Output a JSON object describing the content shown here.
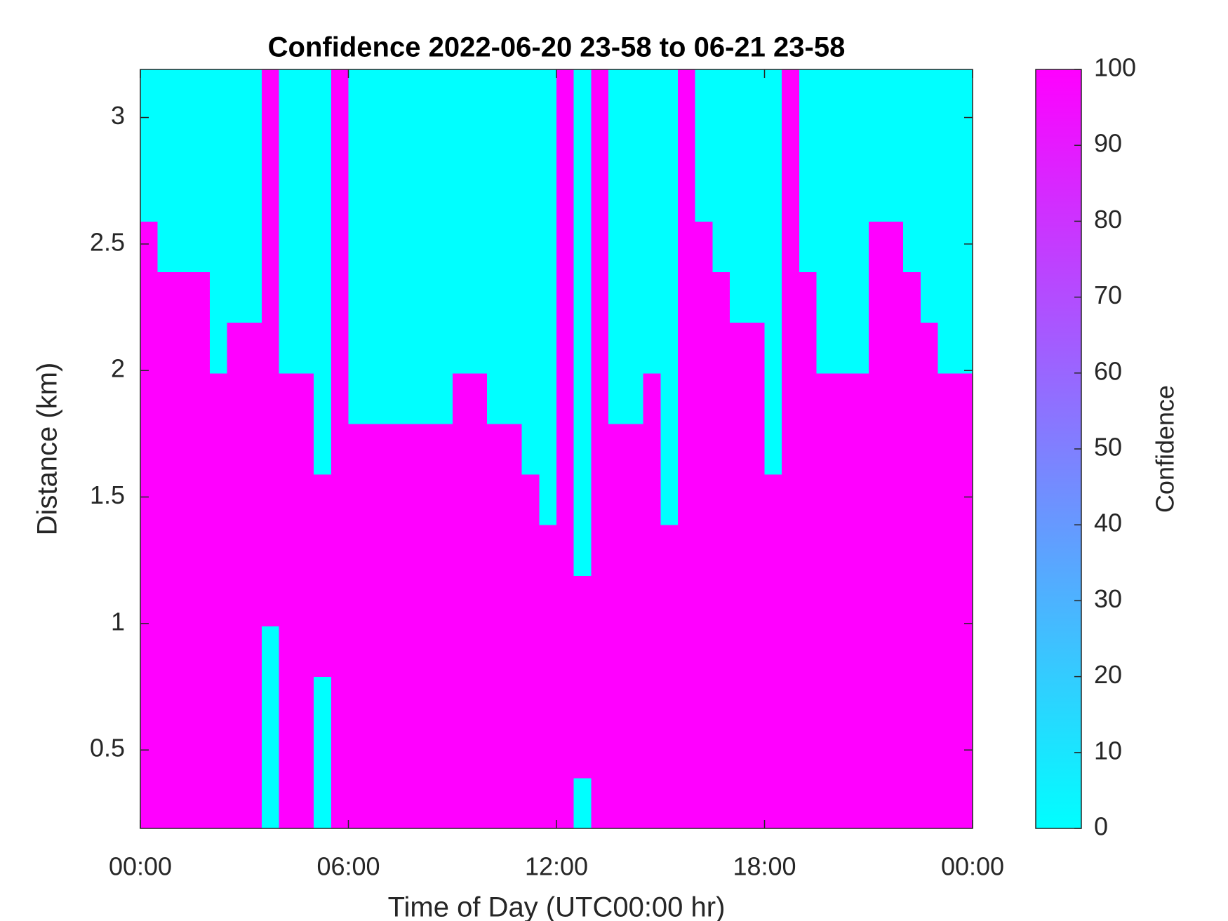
{
  "chart_data": {
    "type": "heatmap",
    "title": "Confidence 2022-06-20 23-58 to 06-21 23-58",
    "xlabel": "Time of Day (UTC00:00 hr)",
    "ylabel": "Distance (km)",
    "colorbar_label": "Confidence",
    "colormap": [
      "#00ffff",
      "#ff00ff"
    ],
    "clim": [
      0,
      100
    ],
    "cticks": [
      0,
      10,
      20,
      30,
      40,
      50,
      60,
      70,
      80,
      90,
      100
    ],
    "xlim": [
      0,
      24
    ],
    "xticks": [
      {
        "value": 0,
        "label": "00:00"
      },
      {
        "value": 6,
        "label": "06:00"
      },
      {
        "value": 12,
        "label": "12:00"
      },
      {
        "value": 18,
        "label": "18:00"
      },
      {
        "value": 24,
        "label": "00:00"
      }
    ],
    "ylim": [
      0.19,
      3.19
    ],
    "yticks": [
      0.5,
      1,
      1.5,
      2,
      2.5,
      3
    ],
    "xbins": [
      0,
      0.5,
      1,
      1.5,
      2,
      2.5,
      3,
      3.5,
      4,
      4.5,
      5,
      5.5,
      6,
      6.5,
      7,
      7.5,
      8,
      8.5,
      9,
      9.5,
      10,
      10.5,
      11,
      11.5,
      12,
      12.5,
      13,
      13.5,
      14,
      14.5,
      15,
      15.5,
      16,
      16.5,
      17,
      17.5,
      18,
      18.5,
      19,
      19.5,
      20,
      20.5,
      21,
      21.5,
      22,
      22.5,
      23,
      23.5,
      24
    ],
    "ybins": [
      0.19,
      0.39,
      0.59,
      0.79,
      0.99,
      1.19,
      1.39,
      1.59,
      1.79,
      1.99,
      2.19,
      2.39,
      2.59,
      2.79,
      2.99,
      3.19
    ],
    "z": [
      [
        100,
        100,
        100,
        100,
        100,
        100,
        100,
        0,
        100,
        100,
        0,
        100,
        100,
        100,
        100,
        100,
        100,
        100,
        100,
        100,
        100,
        100,
        100,
        100,
        100,
        0,
        100,
        100,
        100,
        100,
        100,
        100,
        100,
        100,
        100,
        100,
        100,
        100,
        100,
        100,
        100,
        100,
        100,
        100,
        100,
        100,
        100,
        100
      ],
      [
        100,
        100,
        100,
        100,
        100,
        100,
        100,
        0,
        100,
        100,
        0,
        100,
        100,
        100,
        100,
        100,
        100,
        100,
        100,
        100,
        100,
        100,
        100,
        100,
        100,
        100,
        100,
        100,
        100,
        100,
        100,
        100,
        100,
        100,
        100,
        100,
        100,
        100,
        100,
        100,
        100,
        100,
        100,
        100,
        100,
        100,
        100,
        100
      ],
      [
        100,
        100,
        100,
        100,
        100,
        100,
        100,
        0,
        100,
        100,
        0,
        100,
        100,
        100,
        100,
        100,
        100,
        100,
        100,
        100,
        100,
        100,
        100,
        100,
        100,
        100,
        100,
        100,
        100,
        100,
        100,
        100,
        100,
        100,
        100,
        100,
        100,
        100,
        100,
        100,
        100,
        100,
        100,
        100,
        100,
        100,
        100,
        100
      ],
      [
        100,
        100,
        100,
        100,
        100,
        100,
        100,
        0,
        100,
        100,
        100,
        100,
        100,
        100,
        100,
        100,
        100,
        100,
        100,
        100,
        100,
        100,
        100,
        100,
        100,
        100,
        100,
        100,
        100,
        100,
        100,
        100,
        100,
        100,
        100,
        100,
        100,
        100,
        100,
        100,
        100,
        100,
        100,
        100,
        100,
        100,
        100,
        100
      ],
      [
        100,
        100,
        100,
        100,
        100,
        100,
        100,
        100,
        100,
        100,
        100,
        100,
        100,
        100,
        100,
        100,
        100,
        100,
        100,
        100,
        100,
        100,
        100,
        100,
        100,
        100,
        100,
        100,
        100,
        100,
        100,
        100,
        100,
        100,
        100,
        100,
        100,
        100,
        100,
        100,
        100,
        100,
        100,
        100,
        100,
        100,
        100,
        100
      ],
      [
        100,
        100,
        100,
        100,
        100,
        100,
        100,
        100,
        100,
        100,
        100,
        100,
        100,
        100,
        100,
        100,
        100,
        100,
        100,
        100,
        100,
        100,
        100,
        100,
        100,
        0,
        100,
        100,
        100,
        100,
        100,
        100,
        100,
        100,
        100,
        100,
        100,
        100,
        100,
        100,
        100,
        100,
        100,
        100,
        100,
        100,
        100,
        100
      ],
      [
        100,
        100,
        100,
        100,
        100,
        100,
        100,
        100,
        100,
        100,
        100,
        100,
        100,
        100,
        100,
        100,
        100,
        100,
        100,
        100,
        100,
        100,
        100,
        0,
        100,
        0,
        100,
        100,
        100,
        100,
        0,
        100,
        100,
        100,
        100,
        100,
        100,
        100,
        100,
        100,
        100,
        100,
        100,
        100,
        100,
        100,
        100,
        100
      ],
      [
        100,
        100,
        100,
        100,
        100,
        100,
        100,
        100,
        100,
        100,
        0,
        100,
        100,
        100,
        100,
        100,
        100,
        100,
        100,
        100,
        100,
        100,
        0,
        0,
        100,
        0,
        100,
        100,
        100,
        100,
        0,
        100,
        100,
        100,
        100,
        100,
        0,
        100,
        100,
        100,
        100,
        100,
        100,
        100,
        100,
        100,
        100,
        100
      ],
      [
        100,
        100,
        100,
        100,
        100,
        100,
        100,
        100,
        100,
        100,
        0,
        100,
        0,
        0,
        0,
        0,
        0,
        0,
        100,
        100,
        0,
        0,
        0,
        0,
        100,
        0,
        100,
        0,
        0,
        100,
        0,
        100,
        100,
        100,
        100,
        100,
        0,
        100,
        100,
        100,
        100,
        100,
        100,
        100,
        100,
        100,
        100,
        100
      ],
      [
        100,
        100,
        100,
        100,
        0,
        100,
        100,
        100,
        0,
        0,
        0,
        100,
        0,
        0,
        0,
        0,
        0,
        0,
        0,
        0,
        0,
        0,
        0,
        0,
        100,
        0,
        100,
        0,
        0,
        0,
        0,
        100,
        100,
        100,
        100,
        100,
        0,
        100,
        100,
        0,
        0,
        0,
        100,
        100,
        100,
        100,
        0,
        0
      ],
      [
        100,
        100,
        100,
        100,
        0,
        0,
        0,
        100,
        0,
        0,
        0,
        100,
        0,
        0,
        0,
        0,
        0,
        0,
        0,
        0,
        0,
        0,
        0,
        0,
        100,
        0,
        100,
        0,
        0,
        0,
        0,
        100,
        100,
        100,
        0,
        0,
        0,
        100,
        100,
        0,
        0,
        0,
        100,
        100,
        100,
        0,
        0,
        0
      ],
      [
        100,
        0,
        0,
        0,
        0,
        0,
        0,
        100,
        0,
        0,
        0,
        100,
        0,
        0,
        0,
        0,
        0,
        0,
        0,
        0,
        0,
        0,
        0,
        0,
        100,
        0,
        100,
        0,
        0,
        0,
        0,
        100,
        100,
        0,
        0,
        0,
        0,
        100,
        0,
        0,
        0,
        0,
        100,
        100,
        0,
        0,
        0,
        0
      ],
      [
        0,
        0,
        0,
        0,
        0,
        0,
        0,
        100,
        0,
        0,
        0,
        100,
        0,
        0,
        0,
        0,
        0,
        0,
        0,
        0,
        0,
        0,
        0,
        0,
        100,
        0,
        100,
        0,
        0,
        0,
        0,
        100,
        0,
        0,
        0,
        0,
        0,
        100,
        0,
        0,
        0,
        0,
        0,
        0,
        0,
        0,
        0,
        0
      ],
      [
        0,
        0,
        0,
        0,
        0,
        0,
        0,
        100,
        0,
        0,
        0,
        100,
        0,
        0,
        0,
        0,
        0,
        0,
        0,
        0,
        0,
        0,
        0,
        0,
        100,
        0,
        100,
        0,
        0,
        0,
        0,
        100,
        0,
        0,
        0,
        0,
        0,
        100,
        0,
        0,
        0,
        0,
        0,
        0,
        0,
        0,
        0,
        0
      ],
      [
        0,
        0,
        0,
        0,
        0,
        0,
        0,
        100,
        0,
        0,
        0,
        100,
        0,
        0,
        0,
        0,
        0,
        0,
        0,
        0,
        0,
        0,
        0,
        0,
        100,
        0,
        100,
        0,
        0,
        0,
        0,
        100,
        0,
        0,
        0,
        0,
        0,
        100,
        0,
        0,
        0,
        0,
        0,
        0,
        0,
        0,
        0,
        0
      ]
    ]
  }
}
